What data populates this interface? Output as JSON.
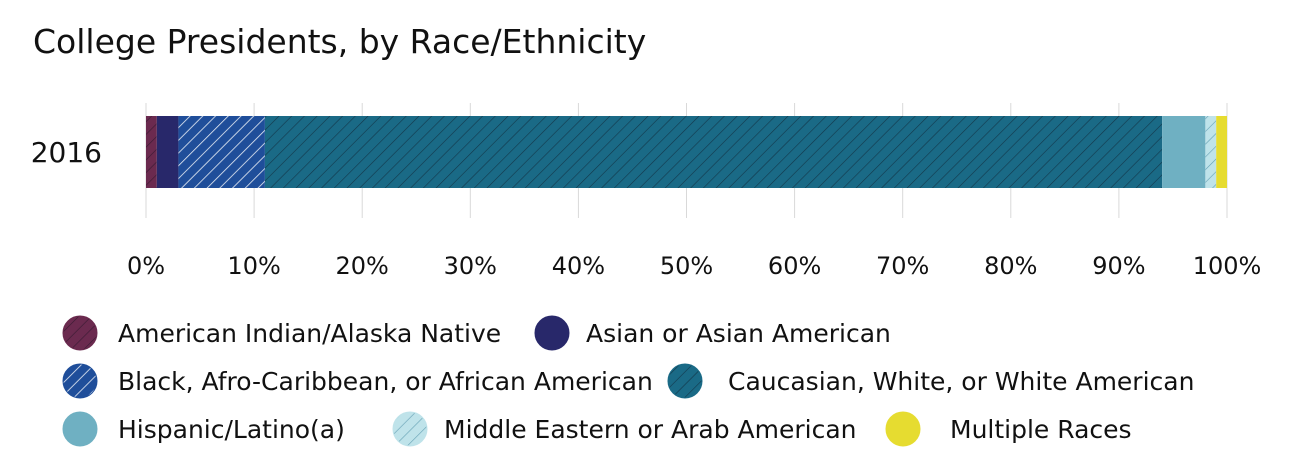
{
  "chart_data": {
    "type": "bar",
    "orientation": "horizontal",
    "stacked": true,
    "title": "College Presidents, by Race/Ethnicity",
    "categories": [
      "2016"
    ],
    "xlim": [
      0,
      100
    ],
    "xticks": [
      0,
      10,
      20,
      30,
      40,
      50,
      60,
      70,
      80,
      90,
      100
    ],
    "tick_suffix": "%",
    "grid": true,
    "legend_position": "bottom",
    "series": [
      {
        "name": "American Indian/Alaska Native",
        "values": [
          1
        ],
        "color": "#6b2a4f",
        "hatch": true
      },
      {
        "name": "Asian or Asian American",
        "values": [
          2
        ],
        "color": "#28286a",
        "hatch": false
      },
      {
        "name": "Black, Afro-Caribbean, or African American",
        "values": [
          8
        ],
        "color": "#1f4e9a",
        "hatch": true
      },
      {
        "name": "Caucasian, White, or White American",
        "values": [
          83
        ],
        "color": "#1a6a86",
        "hatch": true
      },
      {
        "name": "Hispanic/Latino(a)",
        "values": [
          4
        ],
        "color": "#6fb0c2",
        "hatch": false
      },
      {
        "name": "Middle Eastern or Arab American",
        "values": [
          1
        ],
        "color": "#bfe3ea",
        "hatch": true
      },
      {
        "name": "Multiple Races",
        "values": [
          1
        ],
        "color": "#e6dc30",
        "hatch": false
      }
    ]
  }
}
